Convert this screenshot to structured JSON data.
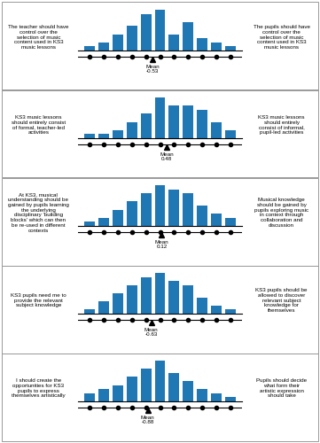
{
  "chart_data": [
    {
      "type": "bar",
      "x": [
        -5,
        -4,
        -3,
        -2,
        -1,
        0,
        1,
        2,
        3,
        4,
        5
      ],
      "values": [
        1,
        2,
        4,
        6,
        9,
        10,
        4,
        7,
        3,
        2,
        1
      ],
      "xlim": [
        -5.8,
        5.8
      ],
      "ylim": [
        0,
        10.8
      ],
      "tick_labels": false,
      "annotations": [
        "The teacher should have\ncontrol over the\nselection of music\ncontent used in KS3\nmusic lessons",
        "The pupils should have\ncontrol over the\nselection of music\ncontent used in KS3\nmusic lessons"
      ],
      "mean": -0.53,
      "mean_label": "Mean\n-0.53"
    },
    {
      "type": "bar",
      "x": [
        -5,
        -4,
        -3,
        -2,
        -1,
        0,
        1,
        2,
        3,
        4,
        5
      ],
      "values": [
        1,
        1,
        2,
        4,
        6,
        10,
        8,
        8,
        7,
        4,
        2
      ],
      "xlim": [
        -5.8,
        5.8
      ],
      "ylim": [
        0,
        10.8
      ],
      "tick_labels": false,
      "annotations": [
        "KS3 music lessons\nshould entirely consist\nof formal, teacher-led\nactivities",
        "KS3 music lessons\nshould entirely\nconsist of informal,\npupil-led activities"
      ],
      "mean": 0.48,
      "mean_label": "Mean\n0.48"
    },
    {
      "type": "bar",
      "x": [
        -5,
        -4,
        -3,
        -2,
        -1,
        0,
        1,
        2,
        3,
        4,
        5
      ],
      "values": [
        1,
        2,
        4,
        6,
        8,
        10,
        9,
        8,
        5,
        3,
        2
      ],
      "xlim": [
        -5.8,
        5.8
      ],
      "ylim": [
        0,
        10.8
      ],
      "tick_labels": false,
      "annotations": [
        "At KS3, musical\nunderstanding should be\ngained by pupils learning\nthe underlying\ndisciplinary 'building\nblocks' which can then\nbe re-used in different\ncontexts",
        "Musical knowledge\nshould be gained by\npupils exploring music\nin context through\ncollaboration and\ndiscussion"
      ],
      "mean": 0.12,
      "mean_label": "Mean\n0.12"
    },
    {
      "type": "bar",
      "x": [
        -5,
        -4,
        -3,
        -2,
        -1,
        0,
        1,
        2,
        3,
        4,
        5
      ],
      "values": [
        1,
        3,
        5,
        7,
        9,
        10,
        8,
        7,
        4,
        2,
        1
      ],
      "xlim": [
        -5.8,
        5.8
      ],
      "ylim": [
        0,
        10.8
      ],
      "tick_labels": false,
      "annotations": [
        "KS3 pupils need me to\nprovide the relevant\nsubject knowledge",
        "KS3 pupils should be\nallowed to discover\nrelevant subject\nknowledge for\nthemselves"
      ],
      "mean": -0.63,
      "mean_label": "Mean\n-0.63"
    },
    {
      "type": "bar",
      "x": [
        -5,
        -4,
        -3,
        -2,
        -1,
        0,
        1,
        2,
        3,
        4,
        5
      ],
      "values": [
        2,
        3,
        4,
        6,
        8,
        10,
        7,
        5,
        3,
        2,
        1
      ],
      "xlim": [
        -5.8,
        5.8
      ],
      "ylim": [
        0,
        10.8
      ],
      "tick_labels": false,
      "annotations": [
        "I should create the\nopportunities for KS3\npupils to express\nthemselves artistically",
        "Pupils should decide\nwhat form their\nartistic expression\nshould take"
      ],
      "mean": -0.88,
      "mean_label": "Mean\n-0.88"
    }
  ]
}
